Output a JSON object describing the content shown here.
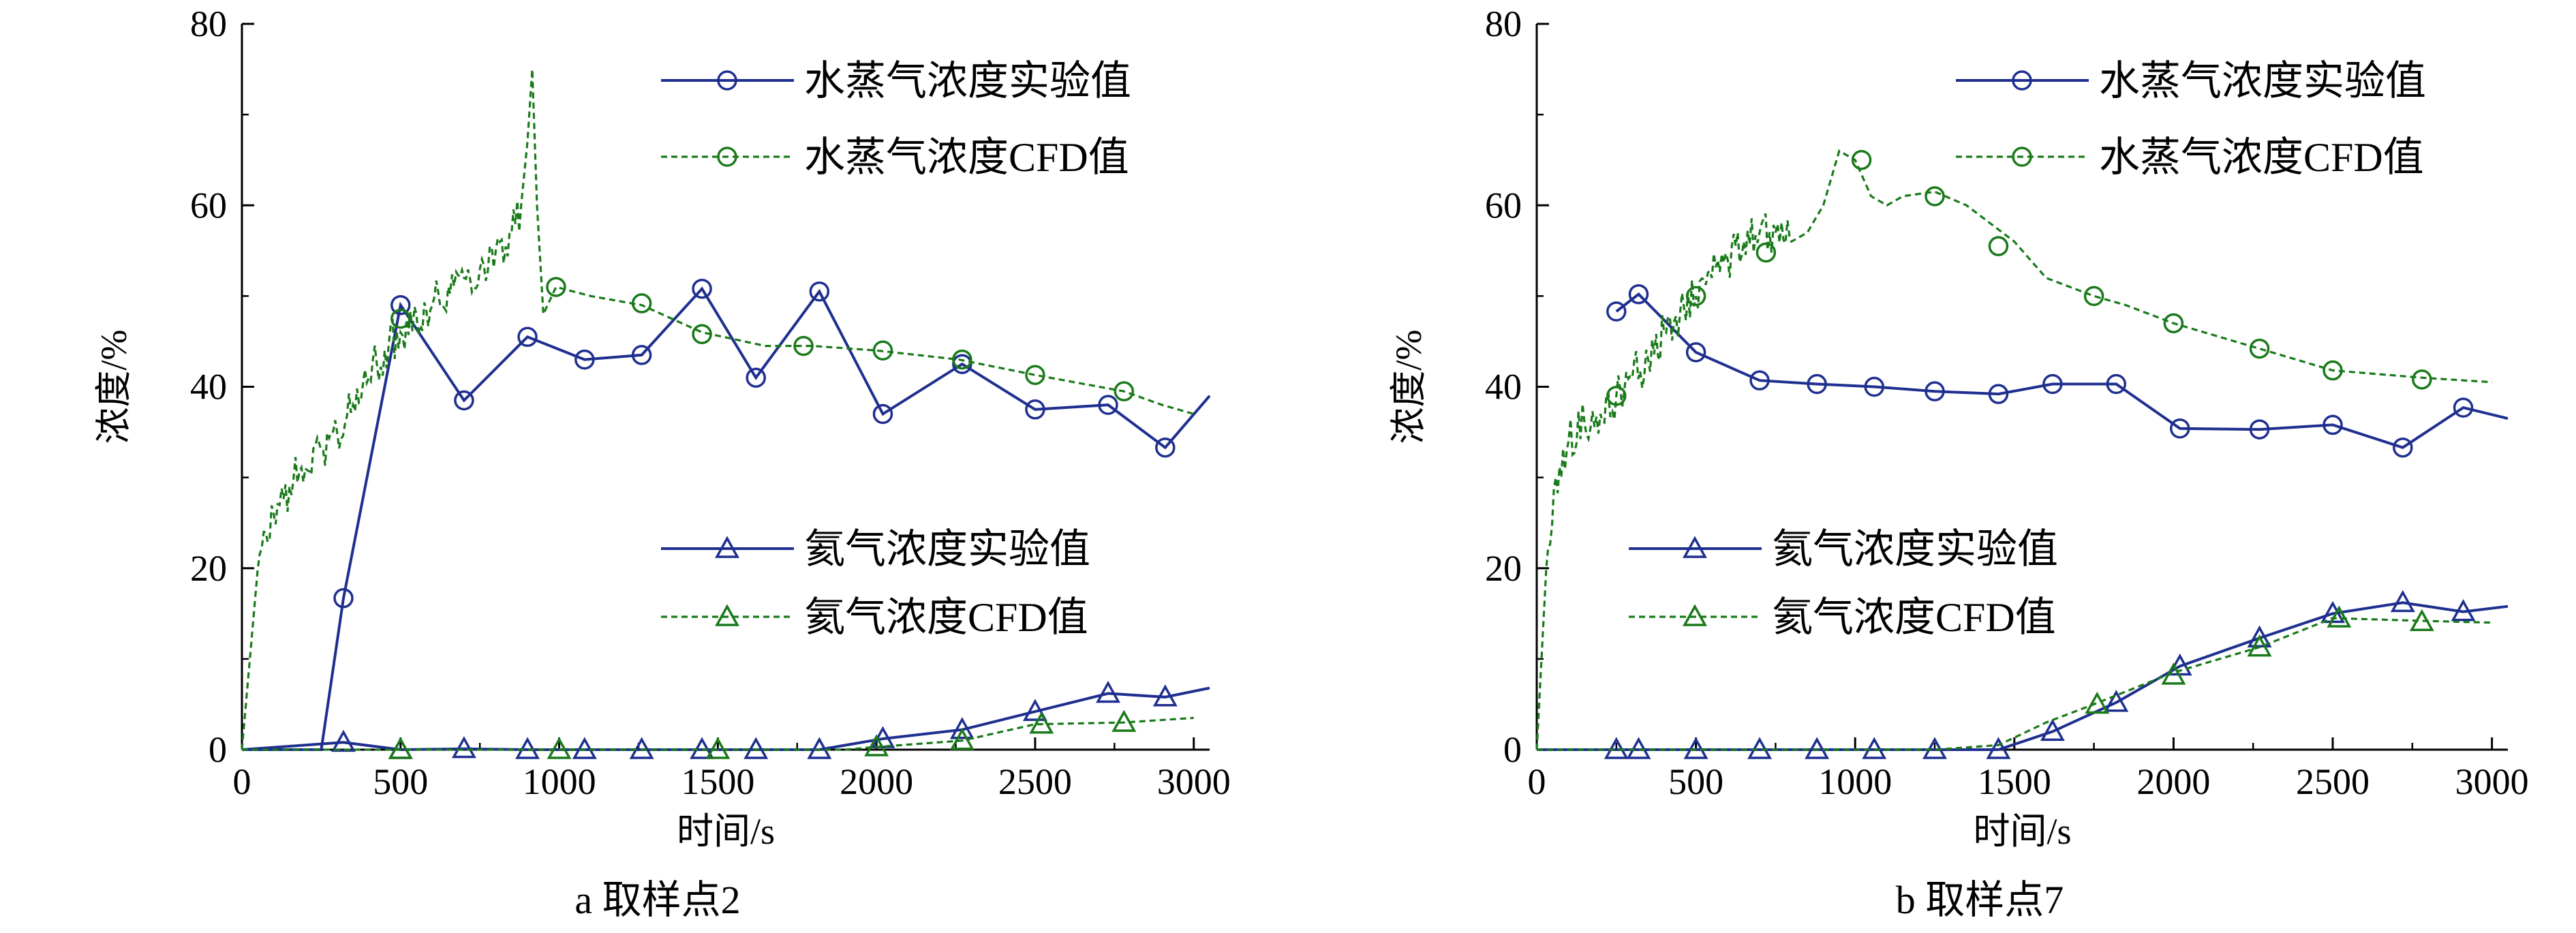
{
  "colors": {
    "experimental": "#1f2f8f",
    "cfd": "#1a7a1a",
    "axis": "#000000"
  },
  "chart_data": [
    {
      "type": "line",
      "id": "panel-a",
      "caption": "a  取样点2",
      "xlabel": "时间/s",
      "ylabel": "浓度/%",
      "xlim": [
        0,
        3050
      ],
      "ylim": [
        0,
        80
      ],
      "xticks": [
        0,
        500,
        1000,
        1500,
        2000,
        2500,
        3000
      ],
      "yticks": [
        0,
        20,
        40,
        60,
        80
      ],
      "legend_upper": [
        "水蒸气浓度实验值",
        "水蒸气浓度CFD值"
      ],
      "legend_lower": [
        "氦气浓度实验值",
        "氦气浓度CFD值"
      ],
      "series": [
        {
          "name": "水蒸气浓度实验值",
          "style": "exp",
          "marker": "circle",
          "x": [
            0,
            250,
            320,
            500,
            700,
            900,
            1080,
            1260,
            1450,
            1620,
            1820,
            2020,
            2270,
            2500,
            2730,
            2910,
            3050
          ],
          "y": [
            0,
            0,
            16.7,
            49,
            38.5,
            45.5,
            43,
            43.5,
            50.8,
            41,
            50.5,
            37,
            42.5,
            37.5,
            38,
            33.3,
            39
          ],
          "marker_idx": [
            2,
            3,
            4,
            5,
            6,
            7,
            8,
            9,
            10,
            11,
            12,
            13,
            14,
            15
          ]
        },
        {
          "name": "水蒸气浓度CFD值",
          "style": "cfd",
          "marker": "circle",
          "x": [
            0,
            50,
            100,
            150,
            200,
            250,
            300,
            350,
            400,
            450,
            500,
            550,
            600,
            650,
            700,
            750,
            800,
            850,
            880,
            900,
            915,
            930,
            950,
            990,
            1100,
            1260,
            1450,
            1650,
            1800,
            2000,
            2260,
            2500,
            2780,
            2900,
            3000
          ],
          "y": [
            0,
            20,
            26,
            29,
            31,
            33,
            35,
            38,
            41,
            44,
            46,
            48,
            49,
            51,
            52,
            53,
            55,
            57,
            60,
            67,
            75,
            60,
            48,
            51,
            50,
            49,
            46,
            44.5,
            44.5,
            44,
            43,
            41.3,
            39.5,
            38,
            37
          ],
          "noise": 2.5,
          "noise_until": 880,
          "markers": [
            [
              500,
              47.5
            ],
            [
              990,
              51
            ],
            [
              1260,
              49.2
            ],
            [
              1450,
              45.8
            ],
            [
              1770,
              44.5
            ],
            [
              2020,
              44
            ],
            [
              2270,
              43
            ],
            [
              2500,
              41.3
            ],
            [
              2780,
              39.5
            ]
          ]
        },
        {
          "name": "氦气浓度实验值",
          "style": "exp",
          "marker": "triangle",
          "x": [
            0,
            320,
            500,
            700,
            900,
            1080,
            1260,
            1450,
            1620,
            1820,
            2020,
            2270,
            2500,
            2730,
            2910,
            3050
          ],
          "y": [
            0,
            0.8,
            0,
            0.1,
            0,
            0,
            0,
            0,
            0,
            0,
            1.2,
            2.2,
            4.2,
            6.2,
            5.8,
            6.8
          ],
          "marker_idx": [
            1,
            2,
            3,
            4,
            5,
            6,
            7,
            8,
            9,
            10,
            11,
            12,
            13,
            14
          ]
        },
        {
          "name": "氦气浓度CFD值",
          "style": "cfd",
          "marker": "triangle",
          "x": [
            0,
            500,
            1000,
            1500,
            1900,
            2000,
            2270,
            2500,
            2780,
            3000
          ],
          "y": [
            0,
            0,
            0,
            0,
            0,
            0.3,
            1.0,
            2.8,
            3.0,
            3.5
          ],
          "markers": [
            [
              500,
              0
            ],
            [
              1000,
              0
            ],
            [
              1500,
              0
            ],
            [
              2000,
              0.3
            ],
            [
              2270,
              1.0
            ],
            [
              2520,
              2.8
            ],
            [
              2780,
              3.0
            ]
          ]
        }
      ]
    },
    {
      "type": "line",
      "id": "panel-b",
      "caption": "b  取样点7",
      "xlabel": "时间/s",
      "ylabel": "浓度/%",
      "xlim": [
        0,
        3050
      ],
      "ylim": [
        0,
        80
      ],
      "xticks": [
        0,
        500,
        1000,
        1500,
        2000,
        2500,
        3000
      ],
      "yticks": [
        0,
        20,
        40,
        60,
        80
      ],
      "legend_upper": [
        "水蒸气浓度实验值",
        "水蒸气浓度CFD值"
      ],
      "legend_lower": [
        "氦气浓度实验值",
        "氦气浓度CFD值"
      ],
      "series": [
        {
          "name": "水蒸气浓度实验值",
          "style": "exp",
          "marker": "circle",
          "x": [
            250,
            320,
            500,
            700,
            880,
            1060,
            1250,
            1450,
            1620,
            1820,
            2020,
            2270,
            2500,
            2720,
            2910,
            3050
          ],
          "y": [
            48.3,
            50.2,
            43.8,
            40.7,
            40.3,
            40,
            39.5,
            39.2,
            40.3,
            40.3,
            35.4,
            35.3,
            35.8,
            33.3,
            37.7,
            36.5
          ],
          "marker_idx": [
            0,
            1,
            2,
            3,
            4,
            5,
            6,
            7,
            8,
            9,
            10,
            11,
            12,
            13,
            14
          ]
        },
        {
          "name": "水蒸气浓度CFD值",
          "style": "cfd",
          "marker": "circle",
          "x": [
            0,
            30,
            60,
            100,
            150,
            200,
            250,
            300,
            350,
            400,
            450,
            500,
            550,
            600,
            650,
            700,
            750,
            800,
            850,
            900,
            950,
            1000,
            1050,
            1100,
            1150,
            1250,
            1350,
            1500,
            1600,
            1750,
            1850,
            2000,
            2270,
            2500,
            2780,
            3000
          ],
          "y": [
            0,
            20,
            30,
            34,
            36,
            37,
            39,
            41,
            43,
            46,
            48,
            50,
            52,
            54,
            56,
            57,
            57,
            56,
            57,
            60,
            66,
            65,
            61,
            60,
            61,
            61.5,
            60,
            56,
            52,
            50,
            49,
            47,
            44.2,
            41.8,
            41,
            40.5
          ],
          "noise": 2.5,
          "noise_until": 800,
          "markers": [
            [
              250,
              39
            ],
            [
              500,
              50
            ],
            [
              720,
              54.8
            ],
            [
              1020,
              65
            ],
            [
              1250,
              61
            ],
            [
              1450,
              55.5
            ],
            [
              1750,
              50
            ],
            [
              2000,
              47
            ],
            [
              2270,
              44.2
            ],
            [
              2500,
              41.8
            ],
            [
              2780,
              40.8
            ]
          ]
        },
        {
          "name": "氦气浓度实验值",
          "style": "exp",
          "marker": "triangle",
          "x": [
            0,
            250,
            320,
            500,
            700,
            880,
            1060,
            1250,
            1450,
            1620,
            1820,
            2020,
            2270,
            2500,
            2720,
            2910,
            3050
          ],
          "y": [
            0,
            0,
            0,
            0,
            0,
            0,
            0,
            0,
            0,
            2,
            5.2,
            9.2,
            12.3,
            15,
            16.2,
            15.2,
            15.8
          ],
          "marker_idx": [
            1,
            2,
            3,
            4,
            5,
            6,
            7,
            8,
            9,
            10,
            11,
            12,
            13,
            14,
            15
          ]
        },
        {
          "name": "氦气浓度CFD值",
          "style": "cfd",
          "marker": "triangle",
          "x": [
            0,
            250,
            500,
            750,
            1000,
            1250,
            1450,
            1600,
            1750,
            2000,
            2270,
            2500,
            2780,
            3000
          ],
          "y": [
            0,
            0,
            0,
            0,
            0,
            0,
            0.5,
            3,
            5,
            8.5,
            11.3,
            14.5,
            14.2,
            14
          ],
          "markers": [
            [
              1760,
              5
            ],
            [
              2000,
              8.2
            ],
            [
              2270,
              11.3
            ],
            [
              2520,
              14.5
            ],
            [
              2780,
              14.1
            ]
          ]
        }
      ]
    }
  ]
}
